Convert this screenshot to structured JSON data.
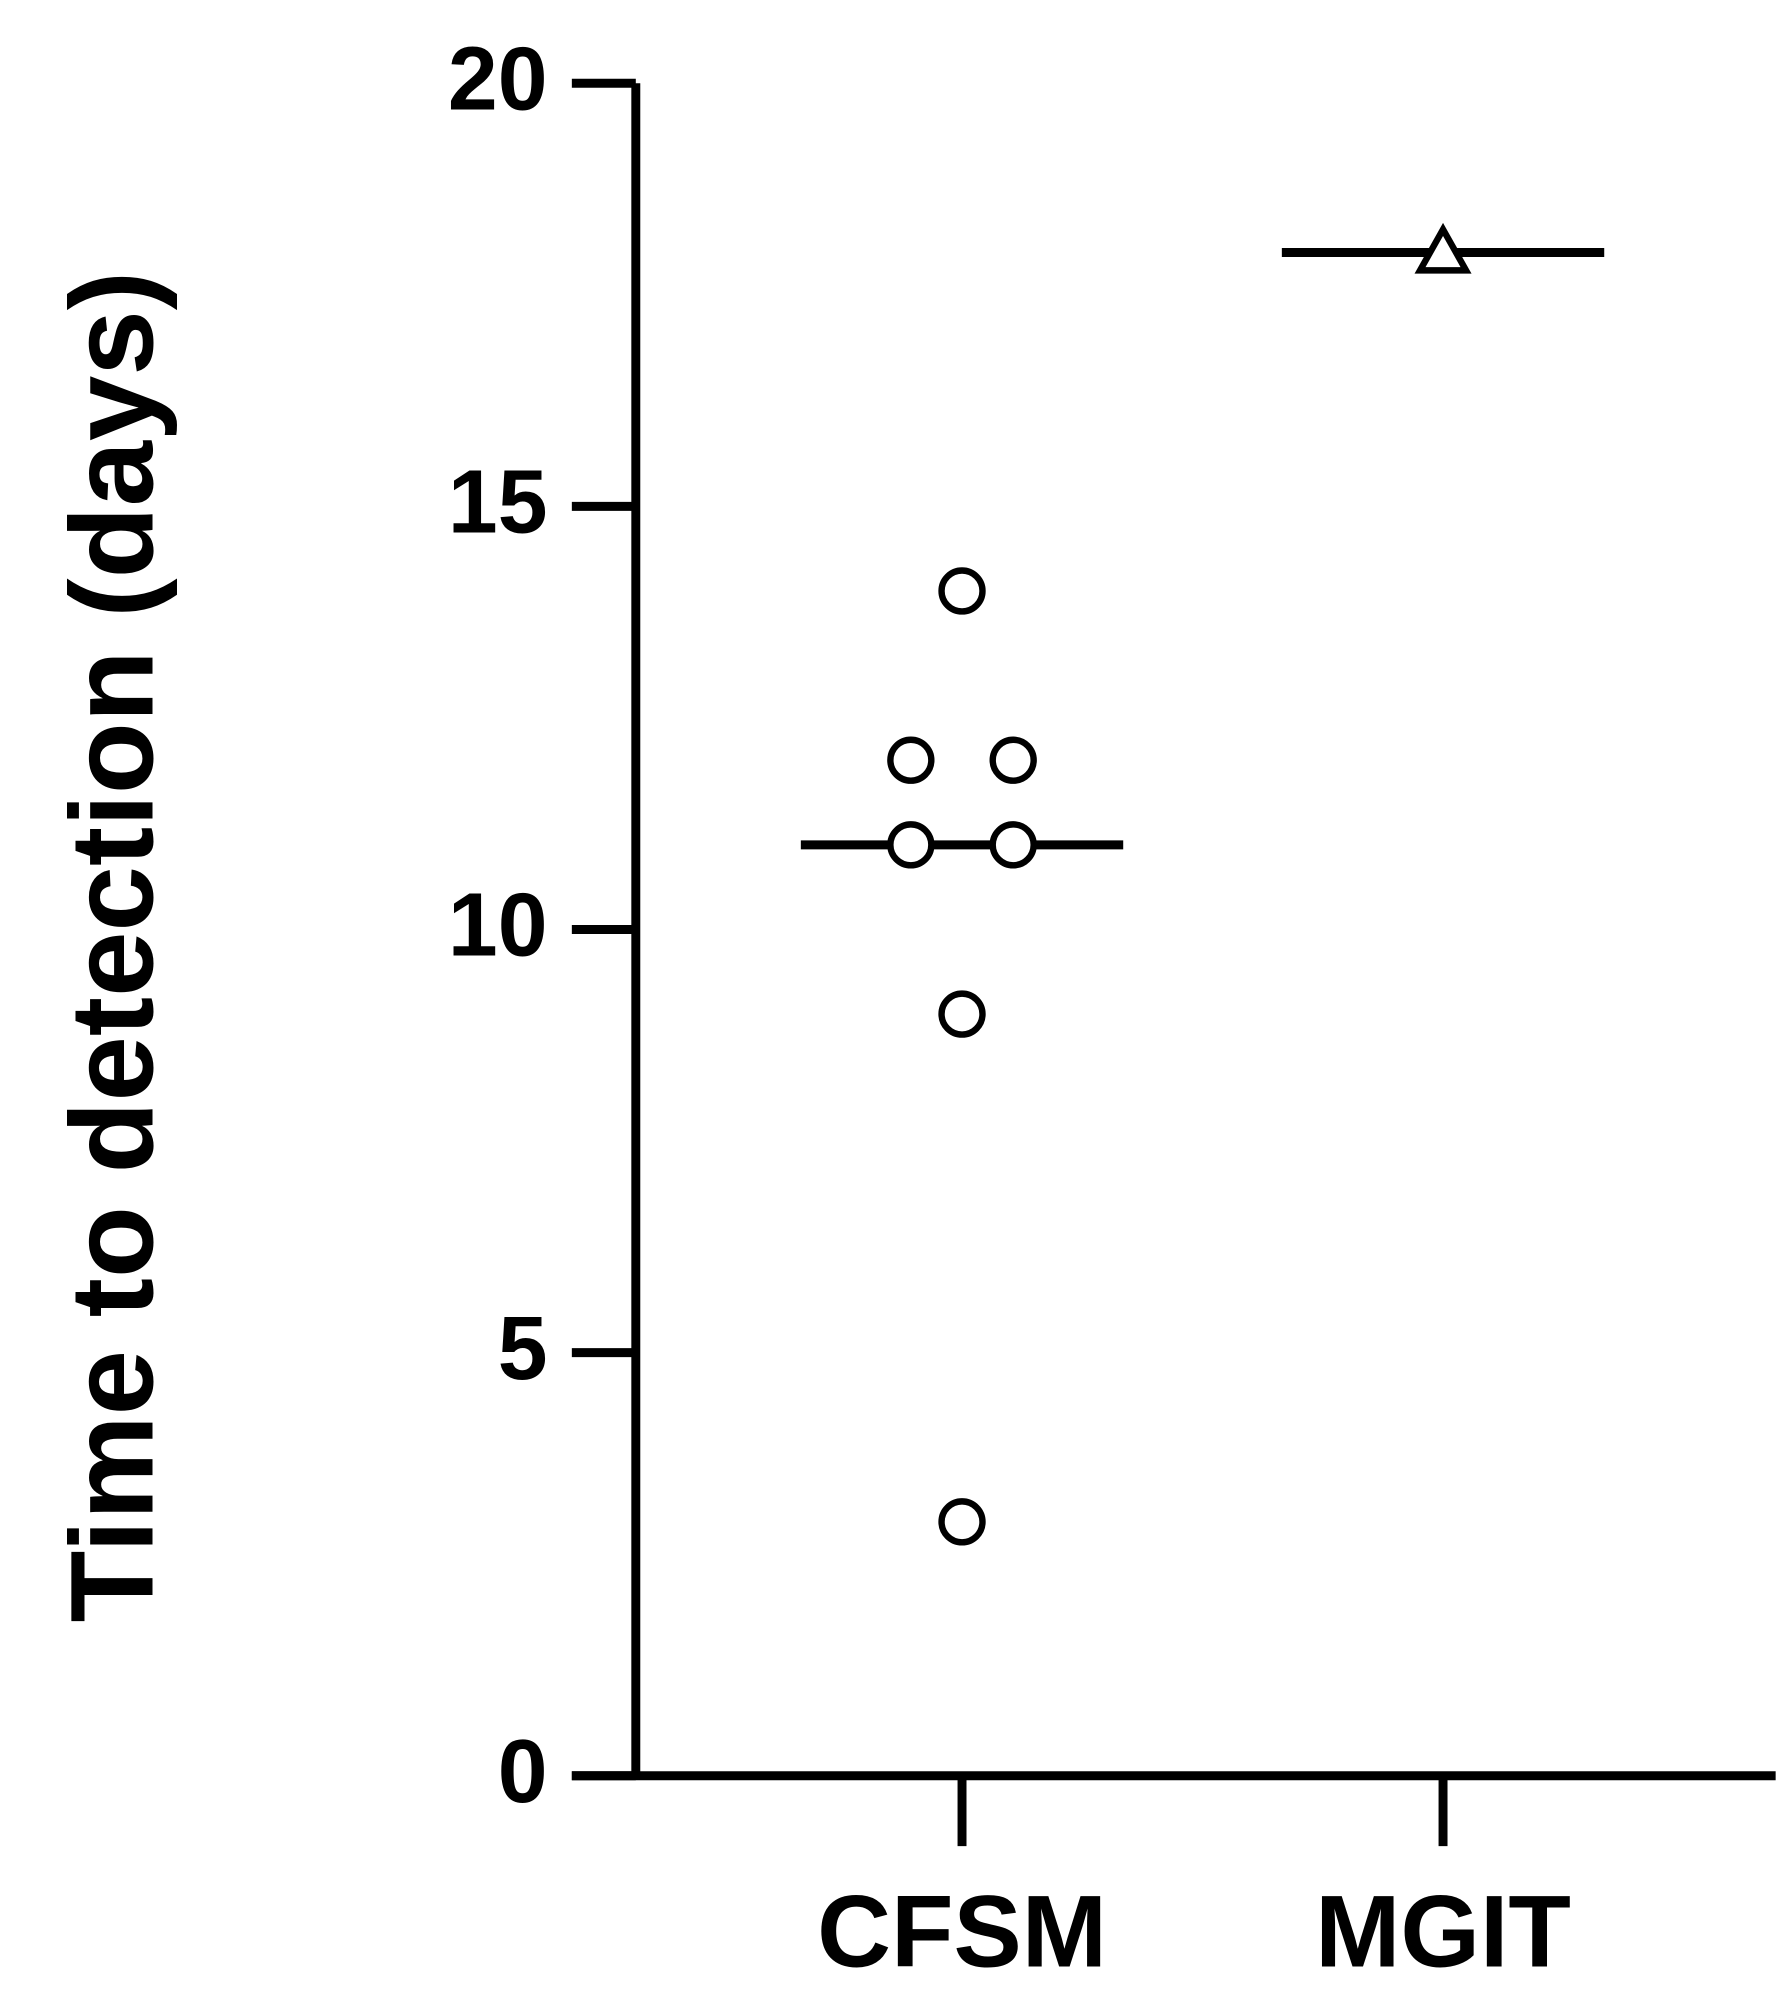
{
  "chart_data": {
    "type": "strip",
    "y_label": "Time to detection (days)",
    "categories": [
      "CFSM",
      "MGIT"
    ],
    "groups": [
      {
        "values": [
          14,
          12,
          12,
          11,
          11,
          9,
          3
        ],
        "median": 11,
        "marker": "circle"
      },
      {
        "values": [
          18
        ],
        "median": 18,
        "marker": "triangle"
      }
    ],
    "color": "#000000",
    "ylim": [
      0,
      20
    ],
    "yticks": [
      0,
      5,
      10,
      15,
      20
    ]
  }
}
